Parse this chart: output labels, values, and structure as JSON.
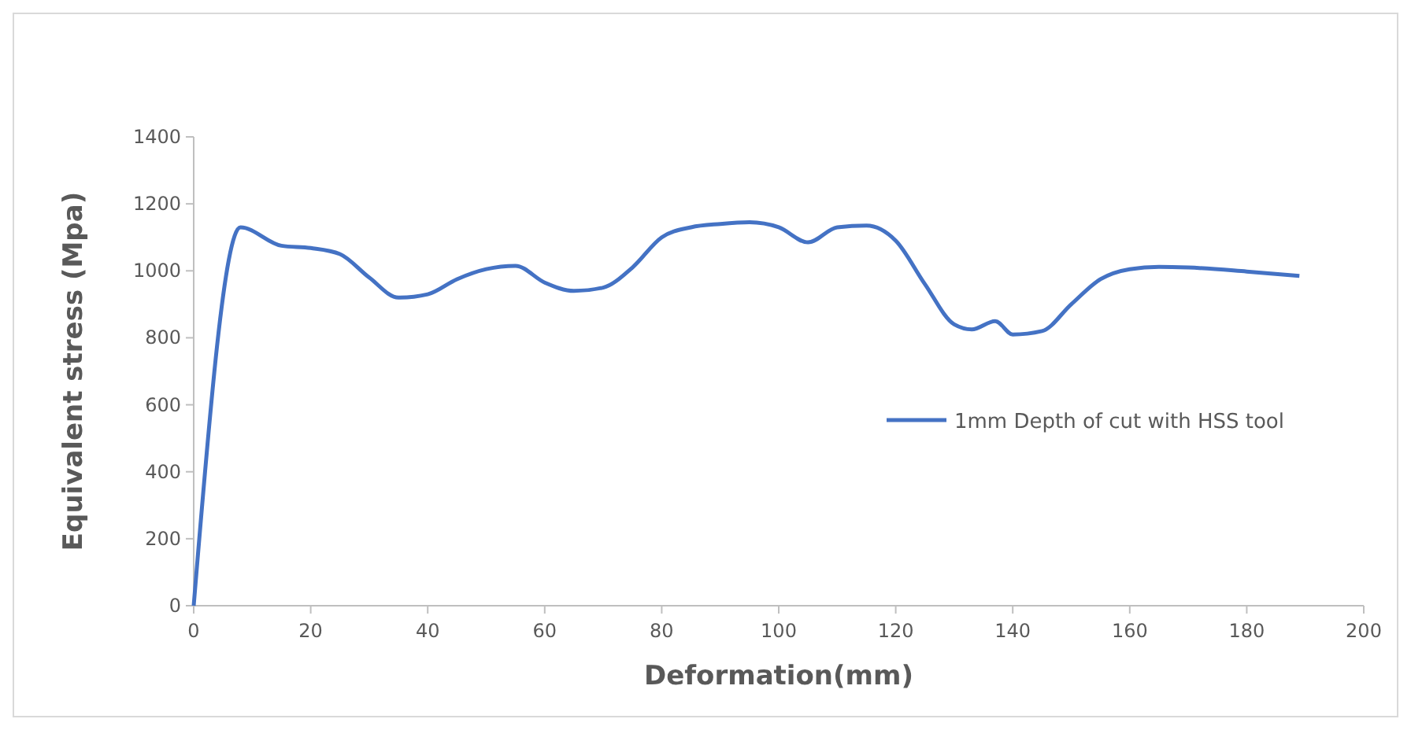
{
  "chart_data": {
    "type": "line",
    "xlabel": "Deformation(mm)",
    "ylabel": "Equivalent stress (Mpa)",
    "xlim": [
      0,
      200
    ],
    "xticks": [
      0,
      20,
      40,
      60,
      80,
      100,
      120,
      140,
      160,
      180,
      200
    ],
    "ylim": [
      0,
      1400
    ],
    "yticks": [
      0,
      200,
      400,
      600,
      800,
      1000,
      1200,
      1400
    ],
    "legend": "right",
    "grid": false,
    "marker": "none",
    "line_style": "solid",
    "series": [
      {
        "name": "1mm Depth of cut with HSS tool",
        "color": "#4472c4",
        "x": [
          0,
          8,
          15,
          20,
          25,
          30,
          35,
          40,
          45,
          50,
          55,
          60,
          65,
          70,
          75,
          80,
          85,
          90,
          95,
          100,
          105,
          110,
          115,
          120,
          125,
          130,
          133,
          137,
          140,
          145,
          150,
          155,
          160,
          165,
          170,
          180,
          189
        ],
        "values": [
          0,
          1130,
          1075,
          1068,
          1050,
          980,
          920,
          930,
          975,
          1005,
          1015,
          965,
          940,
          950,
          1010,
          1100,
          1130,
          1140,
          1145,
          1130,
          1085,
          1130,
          1135,
          1090,
          960,
          840,
          825,
          850,
          810,
          820,
          900,
          975,
          1005,
          1012,
          1010,
          998,
          985
        ]
      }
    ]
  }
}
